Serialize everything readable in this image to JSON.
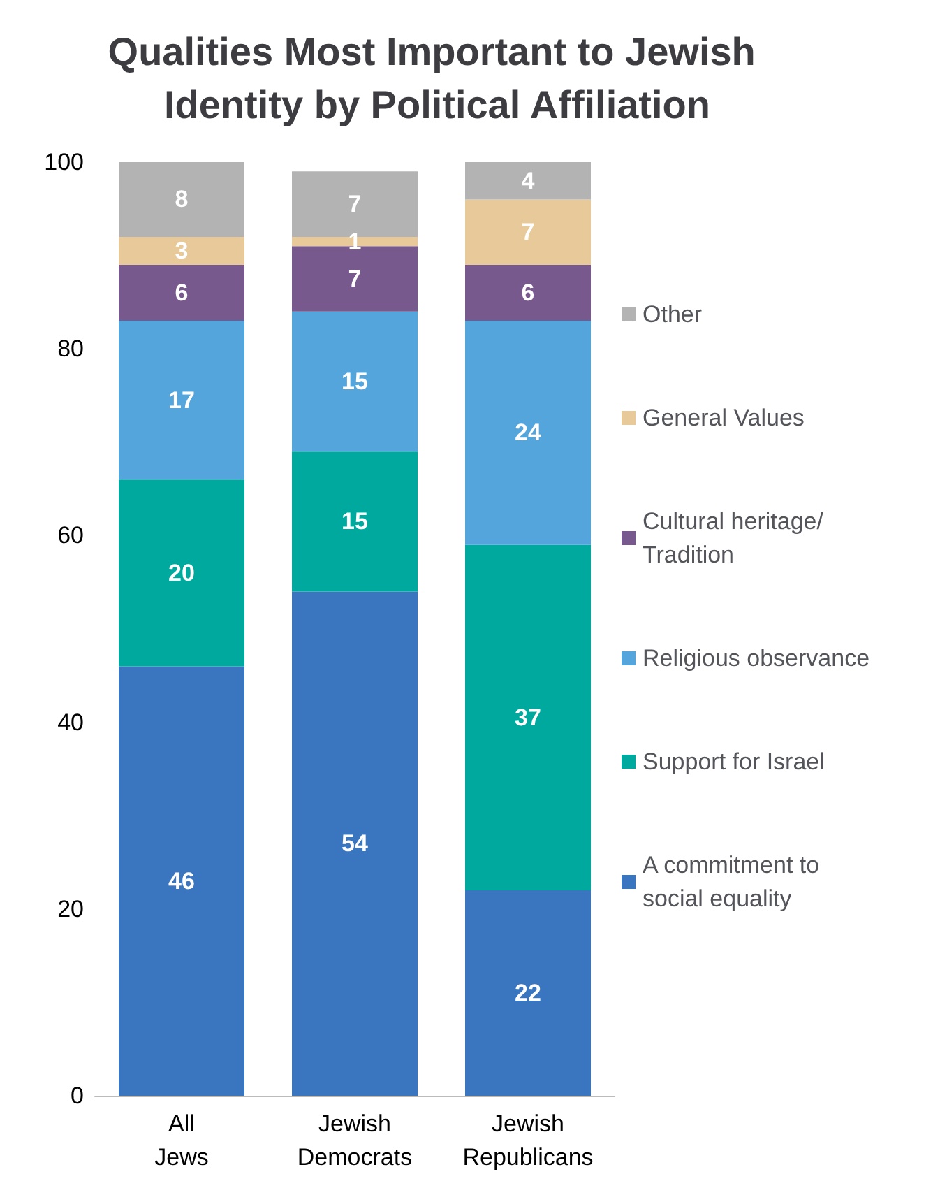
{
  "chart_data": {
    "type": "bar",
    "title": "Qualities Most Important to Jewish Identity by Political Affiliation",
    "categories": [
      "All Jews",
      "Jewish Democrats",
      "Jewish Republicans"
    ],
    "stacked": true,
    "data_labels": true,
    "legend": "right",
    "grid": false,
    "ylim": [
      0,
      100
    ],
    "yticks": [
      0,
      20,
      40,
      60,
      80,
      100
    ],
    "series": [
      {
        "name": "A commitment to social equality",
        "color": "#3a76c0",
        "values": [
          46,
          54,
          22
        ]
      },
      {
        "name": "Support for Israel",
        "color": "#00a99d",
        "values": [
          20,
          15,
          37
        ]
      },
      {
        "name": "Religious observance",
        "color": "#55a5dd",
        "values": [
          17,
          15,
          24
        ]
      },
      {
        "name": "Cultural heritage/ Tradition",
        "color": "#77598e",
        "values": [
          6,
          7,
          6
        ]
      },
      {
        "name": "General Values",
        "color": "#e8c99a",
        "values": [
          3,
          1,
          7
        ]
      },
      {
        "name": "Other",
        "color": "#b3b3b3",
        "values": [
          8,
          7,
          4
        ]
      }
    ]
  }
}
